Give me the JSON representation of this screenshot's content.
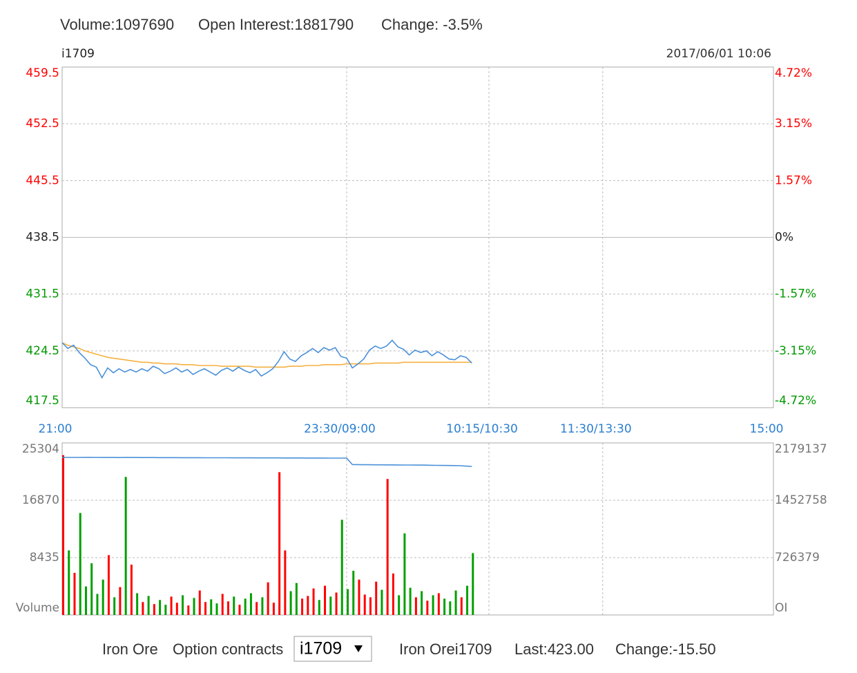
{
  "header": {
    "volume": "Volume:1097690",
    "open_interest": "Open Interest:1881790",
    "change": "Change: -3.5%"
  },
  "chart_data": [
    {
      "type": "line",
      "title": "i1709",
      "timestamp": "2017/06/01 10:06",
      "xlim": [
        0,
        375
      ],
      "xticks": [
        {
          "value": 0,
          "label": "21:00"
        },
        {
          "value": 150,
          "label": "23:30/09:00"
        },
        {
          "value": 225,
          "label": "10:15/10:30"
        },
        {
          "value": 285,
          "label": "11:30/13:30"
        },
        {
          "value": 375,
          "label": "15:00"
        }
      ],
      "ylim": [
        417.5,
        459.5
      ],
      "yticks": [
        417.5,
        424.5,
        431.5,
        438.5,
        445.5,
        452.5,
        459.5
      ],
      "y2lim": [
        -4.72,
        4.72
      ],
      "y2ticks": [
        {
          "value": -4.72,
          "label": "-4.72%"
        },
        {
          "value": -3.15,
          "label": "-3.15%"
        },
        {
          "value": -1.57,
          "label": "-1.57%"
        },
        {
          "value": 0,
          "label": "0%"
        },
        {
          "value": 1.57,
          "label": "1.57%"
        },
        {
          "value": 3.15,
          "label": "3.15%"
        },
        {
          "value": 4.72,
          "label": "4.72%"
        }
      ],
      "grid": true,
      "up_color": "#ff0000",
      "down_color": "#009900",
      "x_label_color": "#2a7fd0",
      "x": [
        0,
        3,
        6,
        9,
        12,
        15,
        18,
        21,
        24,
        27,
        30,
        33,
        36,
        39,
        42,
        45,
        48,
        51,
        54,
        57,
        60,
        63,
        66,
        69,
        72,
        75,
        78,
        81,
        84,
        87,
        90,
        93,
        96,
        99,
        102,
        105,
        108,
        111,
        114,
        117,
        120,
        123,
        126,
        129,
        132,
        135,
        138,
        141,
        144,
        147,
        150,
        153,
        156,
        159,
        162,
        165,
        168,
        171,
        174,
        177,
        180,
        183,
        186,
        189,
        192,
        195,
        198,
        201,
        204,
        207,
        210,
        213,
        216
      ],
      "series": [
        {
          "color": "#4a90d9",
          "values": [
            425.5,
            424.8,
            425.2,
            424.3,
            423.6,
            422.8,
            422.5,
            421.2,
            422.4,
            421.8,
            422.3,
            421.9,
            422.2,
            421.9,
            422.3,
            422.0,
            422.6,
            422.3,
            421.7,
            422.0,
            422.4,
            421.9,
            422.2,
            421.6,
            422.0,
            422.3,
            421.9,
            421.5,
            422.1,
            422.4,
            422.0,
            422.5,
            422.1,
            421.8,
            422.2,
            421.4,
            421.8,
            422.3,
            423.2,
            424.4,
            423.5,
            423.2,
            423.9,
            424.3,
            424.8,
            424.3,
            424.9,
            424.6,
            424.9,
            423.8,
            423.6,
            422.4,
            422.9,
            423.5,
            424.6,
            425.1,
            424.8,
            425.1,
            425.8,
            425.0,
            424.7,
            424.0,
            424.6,
            424.3,
            424.5,
            423.9,
            424.4,
            424.0,
            423.5,
            423.4,
            423.9,
            423.7,
            423.0
          ]
        },
        {
          "color": "#f5b041",
          "values": [
            425.5,
            425.2,
            425.0,
            424.8,
            424.5,
            424.3,
            424.1,
            423.9,
            423.7,
            423.6,
            423.5,
            423.4,
            423.3,
            423.2,
            423.1,
            423.1,
            423.0,
            423.0,
            422.9,
            422.9,
            422.9,
            422.8,
            422.8,
            422.8,
            422.7,
            422.7,
            422.7,
            422.7,
            422.6,
            422.6,
            422.6,
            422.6,
            422.6,
            422.6,
            422.5,
            422.5,
            422.5,
            422.5,
            422.5,
            422.5,
            422.6,
            422.6,
            422.6,
            422.7,
            422.7,
            422.7,
            422.8,
            422.8,
            422.8,
            422.8,
            422.9,
            422.9,
            422.9,
            422.9,
            422.9,
            423.0,
            423.0,
            423.0,
            423.0,
            423.0,
            423.1,
            423.1,
            423.1,
            423.1,
            423.1,
            423.1,
            423.1,
            423.1,
            423.1,
            423.1,
            423.1,
            423.1,
            423.1
          ]
        }
      ]
    },
    {
      "type": "bar",
      "xlim": [
        0,
        375
      ],
      "ylim": [
        0,
        25304
      ],
      "yticks": [
        {
          "value": 0,
          "label": "Volume"
        },
        8435,
        16870,
        25304
      ],
      "y2lim": [
        0,
        2179137
      ],
      "y2ticks": [
        {
          "value": 0,
          "label": "OI"
        },
        726379,
        1452758,
        2179137
      ],
      "grid": true,
      "up_color": "#ff0000",
      "down_color": "#00a000",
      "x": [
        0,
        3,
        6,
        9,
        12,
        15,
        18,
        21,
        24,
        27,
        30,
        33,
        36,
        39,
        42,
        45,
        48,
        51,
        54,
        57,
        60,
        63,
        66,
        69,
        72,
        75,
        78,
        81,
        84,
        87,
        90,
        93,
        96,
        99,
        102,
        105,
        108,
        111,
        114,
        117,
        120,
        123,
        126,
        129,
        132,
        135,
        138,
        141,
        144,
        147,
        150,
        153,
        156,
        159,
        162,
        165,
        168,
        171,
        174,
        177,
        180,
        183,
        186,
        189,
        192,
        195,
        198,
        201,
        204,
        207,
        210,
        213,
        216
      ],
      "series": [
        {
          "values": [
            23500,
            9500,
            6200,
            15000,
            4200,
            7600,
            3100,
            5200,
            8800,
            2600,
            4100,
            20300,
            7400,
            3200,
            1900,
            2800,
            1600,
            2200,
            1500,
            2700,
            1800,
            2900,
            1400,
            2500,
            3600,
            1900,
            2300,
            1700,
            3100,
            2000,
            2700,
            1500,
            2400,
            3200,
            1900,
            2600,
            4800,
            1800,
            21000,
            9500,
            3500,
            4700,
            2400,
            2800,
            3900,
            2200,
            4300,
            2700,
            3300,
            14000,
            3800,
            6500,
            5200,
            3000,
            2600,
            4900,
            3700,
            20000,
            6100,
            2900,
            12000,
            4000,
            2600,
            3500,
            2100,
            2900,
            3200,
            2400,
            2000,
            3600,
            2600,
            4300,
            9100
          ]
        },
        {
          "axis": "y2",
          "color": "#4a90d9",
          "values": [
            1996000,
            1995500,
            1995200,
            1995000,
            1996500,
            1995800,
            1995300,
            1994800,
            1994500,
            1994200,
            1994000,
            1995000,
            1994600,
            1994200,
            1993800,
            1993500,
            1993300,
            1993000,
            1992800,
            1992600,
            1992400,
            1992200,
            1992000,
            1991800,
            1991600,
            1991400,
            1991200,
            1991000,
            1990800,
            1990600,
            1990400,
            1990200,
            1990000,
            1989800,
            1989600,
            1989400,
            1989200,
            1989000,
            1988800,
            1988600,
            1988400,
            1988200,
            1988000,
            1987800,
            1987600,
            1987400,
            1987200,
            1987000,
            1986800,
            1986500,
            1986200,
            1905000,
            1904000,
            1903000,
            1902500,
            1902000,
            1901500,
            1901000,
            1900500,
            1900000,
            1899500,
            1899000,
            1898500,
            1898000,
            1897000,
            1896000,
            1895000,
            1894000,
            1893000,
            1892000,
            1890000,
            1885000,
            1881790
          ]
        }
      ]
    }
  ],
  "footer": {
    "product": "Iron Ore",
    "option_label": "Option contracts",
    "selected": "i1709",
    "contract": "Iron Orei1709",
    "last": "Last:423.00",
    "change": "Change:-15.50"
  }
}
